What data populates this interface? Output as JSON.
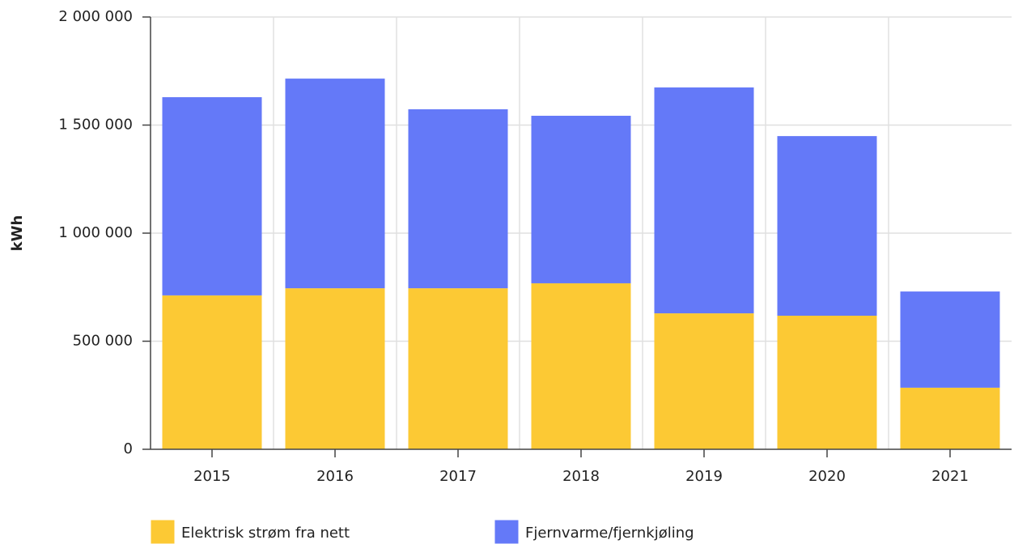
{
  "chart_data": {
    "type": "stacked_bar",
    "y_label": "kWh",
    "categories": [
      "2015",
      "2016",
      "2017",
      "2018",
      "2019",
      "2020",
      "2021"
    ],
    "series": [
      {
        "name": "Elektrisk strøm fra nett",
        "color": "#fcc934",
        "values": [
          712000,
          745000,
          745000,
          768000,
          629000,
          618000,
          285000
        ]
      },
      {
        "name": "Fjernvarme/fjernkjøling",
        "color": "#6479f8",
        "values": [
          917000,
          970000,
          828000,
          775000,
          1045000,
          831000,
          445000
        ]
      }
    ],
    "ylim": [
      0,
      2000000
    ],
    "yticks": [
      0,
      {
        "value": 500000,
        "label": "500 000"
      },
      {
        "value": 1000000,
        "label": "1 000 000"
      },
      {
        "value": 1500000,
        "label": "1 500 000"
      },
      {
        "value": 2000000,
        "label": "2 000 000"
      }
    ],
    "grid": true,
    "legend": "bottom"
  }
}
